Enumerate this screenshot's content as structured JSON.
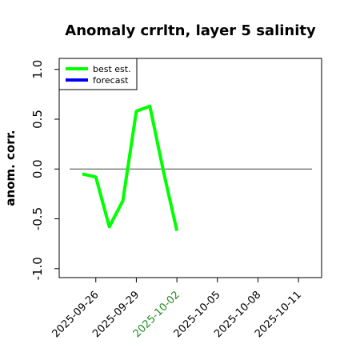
{
  "chart_data": {
    "type": "line",
    "title": "Anomaly crrltn, layer 5 salinity",
    "ylabel": "anom. corr.",
    "x": [
      "2025-09-25",
      "2025-09-26",
      "2025-09-27",
      "2025-09-28",
      "2025-09-29",
      "2025-09-30",
      "2025-10-01",
      "2025-10-02"
    ],
    "series": [
      {
        "name": "best est.",
        "color": "#00ff00",
        "values": [
          -0.05,
          -0.08,
          -0.58,
          -0.32,
          0.58,
          0.63,
          -0.02,
          -0.62
        ]
      },
      {
        "name": "forecast",
        "color": "#0000ff",
        "values": [
          null,
          null,
          null,
          null,
          null,
          null,
          null,
          null
        ]
      }
    ],
    "xlim": [
      "2025-09-23T07:00:00Z",
      "2025-10-12T17:00:00Z"
    ],
    "xticks": [
      "2025-09-26",
      "2025-09-29",
      "2025-10-02",
      "2025-10-05",
      "2025-10-08",
      "2025-10-11"
    ],
    "highlight_xtick": "2025-10-02",
    "highlight_color": "#228b22",
    "ylim": [
      -1.09,
      1.11
    ],
    "yticks": [
      {
        "value": 1,
        "label": "1.0"
      },
      {
        "value": 0.5,
        "label": "0.5"
      },
      {
        "value": 0,
        "label": "0.0"
      },
      {
        "value": -0.5,
        "label": "-0.5"
      },
      {
        "value": -1,
        "label": "-1.0"
      }
    ],
    "reference_line": 0,
    "legend": "upper left"
  }
}
